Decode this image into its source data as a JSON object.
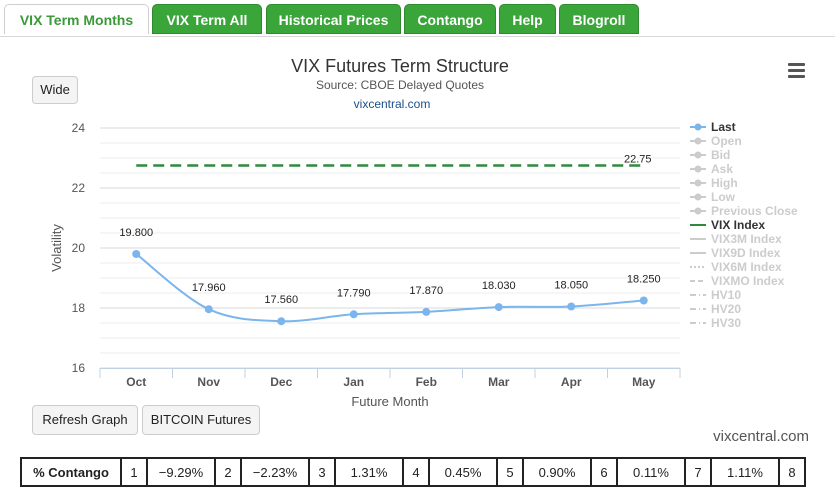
{
  "tabs": [
    {
      "label": "VIX Term Months",
      "active": true
    },
    {
      "label": "VIX Term All",
      "active": false
    },
    {
      "label": "Historical Prices",
      "active": false
    },
    {
      "label": "Contango",
      "active": false
    },
    {
      "label": "Help",
      "active": false
    },
    {
      "label": "Blogroll",
      "active": false
    }
  ],
  "buttons": {
    "wide": "Wide",
    "refresh": "Refresh Graph",
    "bitcoin": "BITCOIN Futures"
  },
  "watermark": "vixcentral.com",
  "colors": {
    "tab_green": "#3aa63a",
    "series_last": "#7cb5ec",
    "vix_index": "#2e8b3e",
    "legend_inactive": "#cccccc"
  },
  "chart_data": {
    "type": "line",
    "title": "VIX Futures Term Structure",
    "subtitle": "Source: CBOE Delayed Quotes",
    "credit": "vixcentral.com",
    "xlabel": "Future Month",
    "ylabel": "Volatility",
    "categories": [
      "Oct",
      "Nov",
      "Dec",
      "Jan",
      "Feb",
      "Mar",
      "Apr",
      "May"
    ],
    "ylim": [
      16,
      24
    ],
    "yticks": [
      16,
      18,
      20,
      22,
      24
    ],
    "grid": true,
    "legend_position": "right",
    "series": [
      {
        "name": "Last",
        "values": [
          19.8,
          17.96,
          17.56,
          17.79,
          17.87,
          18.03,
          18.05,
          18.25
        ],
        "labels": [
          "19.800",
          "17.960",
          "17.560",
          "17.790",
          "17.870",
          "18.030",
          "18.050",
          "18.250"
        ]
      },
      {
        "name": "VIX Index",
        "values": [
          22.75,
          22.75,
          22.75,
          22.75,
          22.75,
          22.75,
          22.75,
          22.75
        ],
        "end_label": "22.75"
      }
    ],
    "legend": [
      {
        "name": "Last",
        "active": true,
        "style": "line-marker"
      },
      {
        "name": "Open",
        "active": false,
        "style": "line-marker"
      },
      {
        "name": "Bid",
        "active": false,
        "style": "line-square"
      },
      {
        "name": "Ask",
        "active": false,
        "style": "line-triangle"
      },
      {
        "name": "High",
        "active": false,
        "style": "line-triangle-down"
      },
      {
        "name": "Low",
        "active": false,
        "style": "line-marker"
      },
      {
        "name": "Previous Close",
        "active": false,
        "style": "line-diamond"
      },
      {
        "name": "VIX Index",
        "active": true,
        "style": "line"
      },
      {
        "name": "VIX3M Index",
        "active": false,
        "style": "line"
      },
      {
        "name": "VIX9D Index",
        "active": false,
        "style": "line"
      },
      {
        "name": "VIX6M Index",
        "active": false,
        "style": "dotted"
      },
      {
        "name": "VIXMO Index",
        "active": false,
        "style": "dashed"
      },
      {
        "name": "HV10",
        "active": false,
        "style": "dashdot"
      },
      {
        "name": "HV20",
        "active": false,
        "style": "dashdot"
      },
      {
        "name": "HV30",
        "active": false,
        "style": "dashdot"
      }
    ]
  },
  "contango_table": {
    "label": "% Contango",
    "cells": [
      {
        "index": "1",
        "value": "−9.29%"
      },
      {
        "index": "2",
        "value": "−2.23%"
      },
      {
        "index": "3",
        "value": "1.31%"
      },
      {
        "index": "4",
        "value": "0.45%"
      },
      {
        "index": "5",
        "value": "0.90%"
      },
      {
        "index": "6",
        "value": "0.11%"
      },
      {
        "index": "7",
        "value": "1.11%"
      },
      {
        "index": "8",
        "value": ""
      }
    ]
  }
}
